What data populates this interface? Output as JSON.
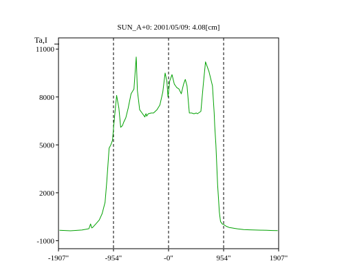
{
  "chart_data": {
    "type": "line",
    "title": "SUN_A+0: 2001/05/09: 4.08[cm]",
    "ylabel": "Ta,I",
    "xlabel": "",
    "x_ticks": [
      "-1907\"",
      "-954\"",
      "-0\"",
      "954\"",
      "1907\""
    ],
    "x_tick_values": [
      -1907,
      -954,
      0,
      954,
      1907
    ],
    "y_ticks": [
      "11000",
      "8000",
      "5000",
      "2000",
      "-1000"
    ],
    "y_tick_values": [
      11000,
      8000,
      5000,
      2000,
      -1000
    ],
    "xlim": [
      -1907,
      1907
    ],
    "ylim": [
      -1500,
      11700
    ],
    "vlines_x": [
      -954,
      0,
      954
    ],
    "grid": false,
    "legend": "none",
    "line_color": "#00a000",
    "series": [
      {
        "x": [
          -1890,
          -1700,
          -1500,
          -1380,
          -1350,
          -1340,
          -1330,
          -1310,
          -1260,
          -1200,
          -1150,
          -1100,
          -1070,
          -1030,
          -1000,
          -970,
          -950,
          -900,
          -860,
          -830,
          -800,
          -780,
          -740,
          -700,
          -650,
          -600,
          -560,
          -540,
          -500,
          -460,
          -430,
          -410,
          -400,
          -390,
          -380,
          -350,
          -300,
          -260,
          -200,
          -150,
          -100,
          -60,
          -30,
          -10,
          20,
          60,
          100,
          120,
          140,
          180,
          220,
          260,
          290,
          320,
          360,
          400,
          440,
          480,
          500,
          520,
          560,
          600,
          640,
          700,
          760,
          790,
          800,
          820,
          850,
          880,
          900,
          930,
          960,
          1000,
          1050,
          1100,
          1150,
          1200,
          1300,
          1400,
          1500,
          1600,
          1700,
          1800,
          1890
        ],
        "y": [
          -350,
          -380,
          -330,
          -250,
          50,
          -100,
          -200,
          -150,
          50,
          300,
          700,
          1400,
          2700,
          4800,
          5000,
          5300,
          6200,
          8100,
          7300,
          6100,
          6200,
          6400,
          6700,
          7300,
          8200,
          8500,
          10500,
          8400,
          7200,
          7000,
          6850,
          6750,
          6900,
          6950,
          6800,
          6950,
          7000,
          7000,
          7200,
          7500,
          8300,
          9500,
          9000,
          8000,
          9000,
          9400,
          8800,
          8700,
          8600,
          8500,
          8200,
          8800,
          9100,
          8700,
          7000,
          7000,
          6950,
          7000,
          6950,
          7000,
          7100,
          8700,
          10200,
          9600,
          8700,
          7000,
          6200,
          5000,
          2500,
          800,
          200,
          50,
          0,
          -100,
          -170,
          -200,
          -230,
          -260,
          -300,
          -320,
          -330,
          -340,
          -350,
          -360,
          -370
        ]
      }
    ]
  }
}
